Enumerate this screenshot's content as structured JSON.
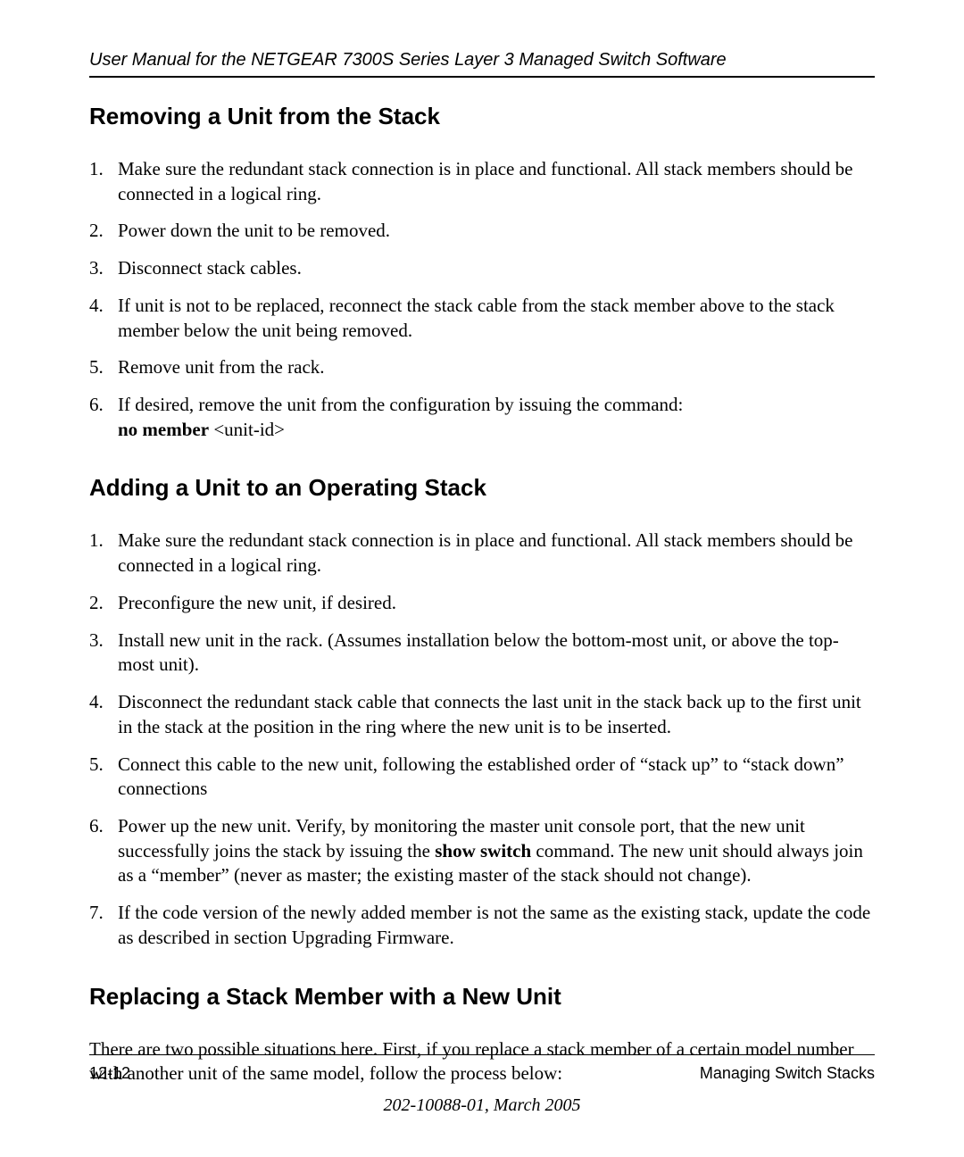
{
  "header": {
    "running": "User Manual for the NETGEAR 7300S Series Layer 3 Managed Switch Software"
  },
  "section1": {
    "title": "Removing a Unit from the Stack",
    "items": {
      "n1": "1.",
      "t1": "Make sure the redundant stack connection is in place and functional. All stack members should be connected in a logical ring.",
      "n2": "2.",
      "t2": "Power down the unit to be removed.",
      "n3": "3.",
      "t3": "Disconnect stack cables.",
      "n4": "4.",
      "t4": "If unit is not to be replaced, reconnect the stack cable from the stack member above to the stack member below the unit being removed.",
      "n5": "5.",
      "t5": "Remove unit from the rack.",
      "n6": "6.",
      "t6a": "If desired, remove the unit from the configuration by issuing the command:",
      "t6b_bold": "no member",
      "t6b_rest": " <unit-id>"
    }
  },
  "section2": {
    "title": "Adding a Unit to an Operating Stack",
    "items": {
      "n1": "1.",
      "t1": "Make sure the redundant stack connection is in place and functional. All stack members should be connected in a logical ring.",
      "n2": "2.",
      "t2": "Preconfigure the new unit, if desired.",
      "n3": "3.",
      "t3": "Install new unit in the rack. (Assumes installation below the bottom-most unit, or above the top-most unit).",
      "n4": "4.",
      "t4": "Disconnect the redundant stack cable that connects the last unit in the stack back up to the first unit in the stack at the position in the ring where the new unit is to be inserted.",
      "n5": "5.",
      "t5": "Connect this cable to the new unit, following the established order of “stack up” to “stack down” connections",
      "n6": "6.",
      "t6a": "Power up the new unit. Verify, by monitoring the master unit console port, that the new unit successfully joins the stack by issuing the ",
      "t6b_bold": "show switch",
      "t6c": " command. The new unit should always join as a “member” (never as master; the existing master of the stack should not change).",
      "n7": "7.",
      "t7": "If the code version of the newly added member is not the same as the existing stack, update the code as described in section Upgrading Firmware."
    }
  },
  "section3": {
    "title": "Replacing a Stack Member with a New Unit",
    "para": "There are two possible situations here. First, if you replace a stack member of a certain model number with another unit of the same model, follow the process below:"
  },
  "footer": {
    "page": "12-12",
    "chapter": "Managing Switch Stacks",
    "stamp": "202-10088-01, March 2005"
  }
}
